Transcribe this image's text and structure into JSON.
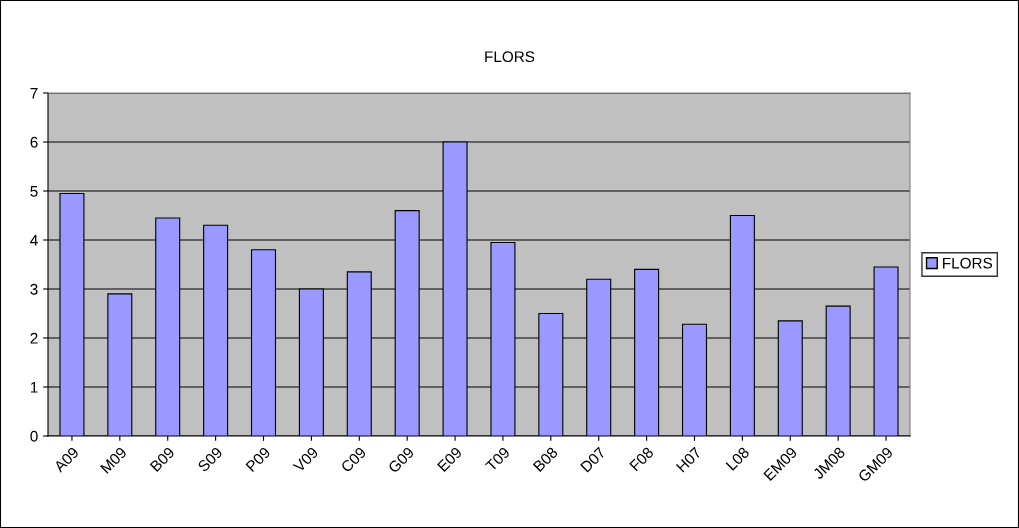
{
  "chart_data": {
    "type": "bar",
    "title": "FLORS",
    "categories": [
      "A09",
      "M09",
      "B09",
      "S09",
      "P09",
      "V09",
      "C09",
      "G09",
      "E09",
      "T09",
      "B08",
      "D07",
      "F08",
      "H07",
      "L08",
      "EM09",
      "JM08",
      "GM09"
    ],
    "series": [
      {
        "name": "FLORS",
        "color": "#9999ff",
        "values": [
          4.95,
          2.9,
          4.45,
          4.3,
          3.8,
          3.0,
          3.35,
          4.6,
          6.0,
          3.95,
          2.5,
          3.2,
          3.4,
          2.28,
          4.5,
          2.35,
          2.65,
          3.45
        ]
      }
    ],
    "ylim": [
      0,
      7
    ],
    "yticks": [
      0,
      1,
      2,
      3,
      4,
      5,
      6,
      7
    ],
    "grid": "y",
    "legend": "right"
  }
}
